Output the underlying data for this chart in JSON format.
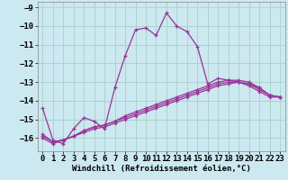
{
  "xlabel": "Windchill (Refroidissement éolien,°C)",
  "bg_color": "#cce8f0",
  "grid_color": "#aad4cc",
  "line_color": "#993399",
  "x_hours": [
    0,
    1,
    2,
    3,
    4,
    5,
    6,
    7,
    8,
    9,
    10,
    11,
    12,
    13,
    14,
    15,
    16,
    17,
    18,
    19,
    20,
    21,
    22,
    23
  ],
  "main_line": [
    -14.4,
    -16.1,
    -16.3,
    -15.5,
    -14.9,
    -15.1,
    -15.5,
    -13.3,
    -11.6,
    -10.2,
    -10.1,
    -10.5,
    -9.3,
    -10.0,
    -10.3,
    -11.1,
    -13.1,
    -12.8,
    -12.9,
    -13.0,
    -13.2,
    -13.5,
    -13.8,
    -13.8
  ],
  "line2": [
    -15.8,
    -16.2,
    -16.1,
    -15.9,
    -15.7,
    -15.5,
    -15.4,
    -15.2,
    -15.0,
    -14.8,
    -14.6,
    -14.4,
    -14.2,
    -14.0,
    -13.8,
    -13.6,
    -13.4,
    -13.2,
    -13.1,
    -13.0,
    -13.1,
    -13.4,
    -13.7,
    -13.8
  ],
  "line3": [
    -15.9,
    -16.2,
    -16.1,
    -15.9,
    -15.6,
    -15.4,
    -15.3,
    -15.1,
    -14.9,
    -14.7,
    -14.5,
    -14.3,
    -14.1,
    -13.9,
    -13.7,
    -13.5,
    -13.3,
    -13.1,
    -13.0,
    -13.0,
    -13.1,
    -13.3,
    -13.7,
    -13.8
  ],
  "line4": [
    -16.0,
    -16.3,
    -16.1,
    -15.9,
    -15.6,
    -15.4,
    -15.3,
    -15.1,
    -14.8,
    -14.6,
    -14.4,
    -14.2,
    -14.0,
    -13.8,
    -13.6,
    -13.4,
    -13.2,
    -13.0,
    -12.9,
    -12.9,
    -13.0,
    -13.3,
    -13.7,
    -13.8
  ],
  "ylim": [
    -16.7,
    -8.7
  ],
  "xlim": [
    -0.5,
    23.5
  ],
  "yticks": [
    -9,
    -10,
    -11,
    -12,
    -13,
    -14,
    -15,
    -16
  ],
  "xticks": [
    0,
    1,
    2,
    3,
    4,
    5,
    6,
    7,
    8,
    9,
    10,
    11,
    12,
    13,
    14,
    15,
    16,
    17,
    18,
    19,
    20,
    21,
    22,
    23
  ],
  "tick_fontsize": 6.5,
  "xlabel_fontsize": 6.5
}
